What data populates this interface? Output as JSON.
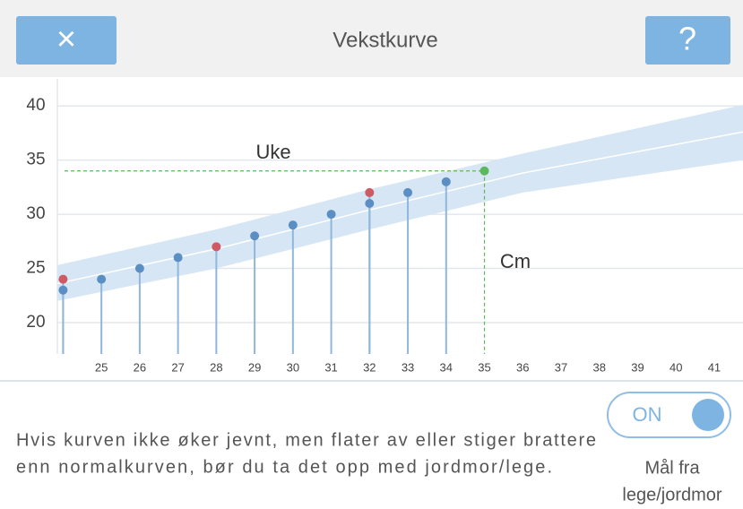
{
  "header": {
    "close": "×",
    "title": "Vekstkurve",
    "help": "?"
  },
  "chart_data": {
    "type": "scatter",
    "xlim": [
      23.85,
      41.75
    ],
    "xticks": [
      25,
      26,
      27,
      28,
      29,
      30,
      31,
      32,
      33,
      34,
      35,
      36,
      37,
      38,
      39,
      40,
      41
    ],
    "ylim": [
      17.1,
      42.5
    ],
    "yticks": [
      20,
      25,
      30,
      35,
      40
    ],
    "grid": true,
    "band": {
      "color": "#d6e6f4",
      "x": [
        23.85,
        28,
        32,
        36,
        41.75
      ],
      "upper": [
        25.3,
        28.6,
        32.3,
        35.6,
        40.1
      ],
      "lower": [
        22.0,
        25.0,
        28.6,
        32.0,
        35.0
      ],
      "median": [
        23.6,
        26.8,
        30.4,
        33.8,
        37.6
      ]
    },
    "series": [
      {
        "color": "#5b8fc4",
        "x": [
          24,
          25,
          26,
          27,
          29,
          30,
          31,
          32,
          33,
          34
        ],
        "values": [
          23,
          24,
          25,
          26,
          28,
          29,
          30,
          31,
          32,
          33
        ]
      },
      {
        "color": "#cf5a63",
        "x": [
          24,
          28,
          32
        ],
        "values": [
          24,
          27,
          32
        ]
      }
    ],
    "marker": {
      "color": "#5cb85c",
      "x": 35,
      "y": 34
    },
    "annotations": [
      "Uke",
      "Cm"
    ]
  },
  "footer": {
    "text": [
      "Hvis kurven ikke øker jevnt, men flater av eller stiger brattere",
      "enn normalkurven, bør du ta det opp med jordmor/lege."
    ],
    "toggle": "ON",
    "toggle_label": [
      "Mål fra",
      "lege/jordmor"
    ]
  }
}
